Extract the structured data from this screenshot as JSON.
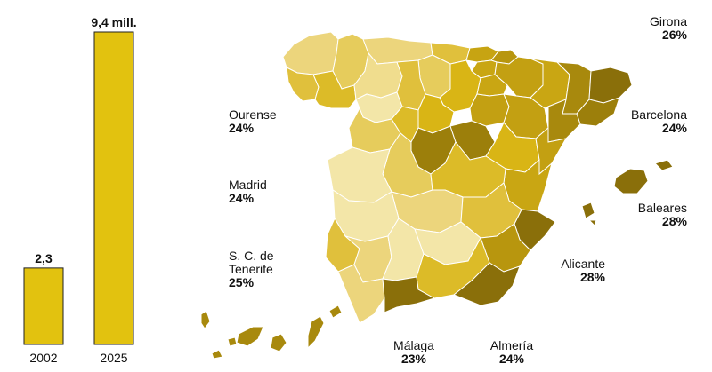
{
  "chart_data": [
    {
      "type": "bar",
      "categories": [
        "2002",
        "2025"
      ],
      "values": [
        2.3,
        9.4
      ],
      "data_labels": [
        "2,3",
        "9,4 mill."
      ],
      "color": "#e2c20f"
    },
    {
      "type": "choropleth-map",
      "annotations": [
        {
          "name": "Ourense",
          "value": "24%"
        },
        {
          "name": "Madrid",
          "value": "24%"
        },
        {
          "name": "S. C. de Tenerife",
          "value": "25%",
          "name_line1": "S. C. de",
          "name_line2": "Tenerife"
        },
        {
          "name": "Málaga",
          "value": "23%"
        },
        {
          "name": "Almería",
          "value": "24%"
        },
        {
          "name": "Alicante",
          "value": "28%"
        },
        {
          "name": "Baleares",
          "value": "28%"
        },
        {
          "name": "Barcelona",
          "value": "24%"
        },
        {
          "name": "Girona",
          "value": "26%"
        }
      ],
      "palette": {
        "lightest": "#f3e6a8",
        "light": "#ecd57c",
        "mid": "#e0c03c",
        "strong": "#d9b515",
        "dark": "#b8960e",
        "darker": "#9c7f0b",
        "darkest": "#8a6f0a",
        "border": "#ffffff"
      }
    }
  ]
}
